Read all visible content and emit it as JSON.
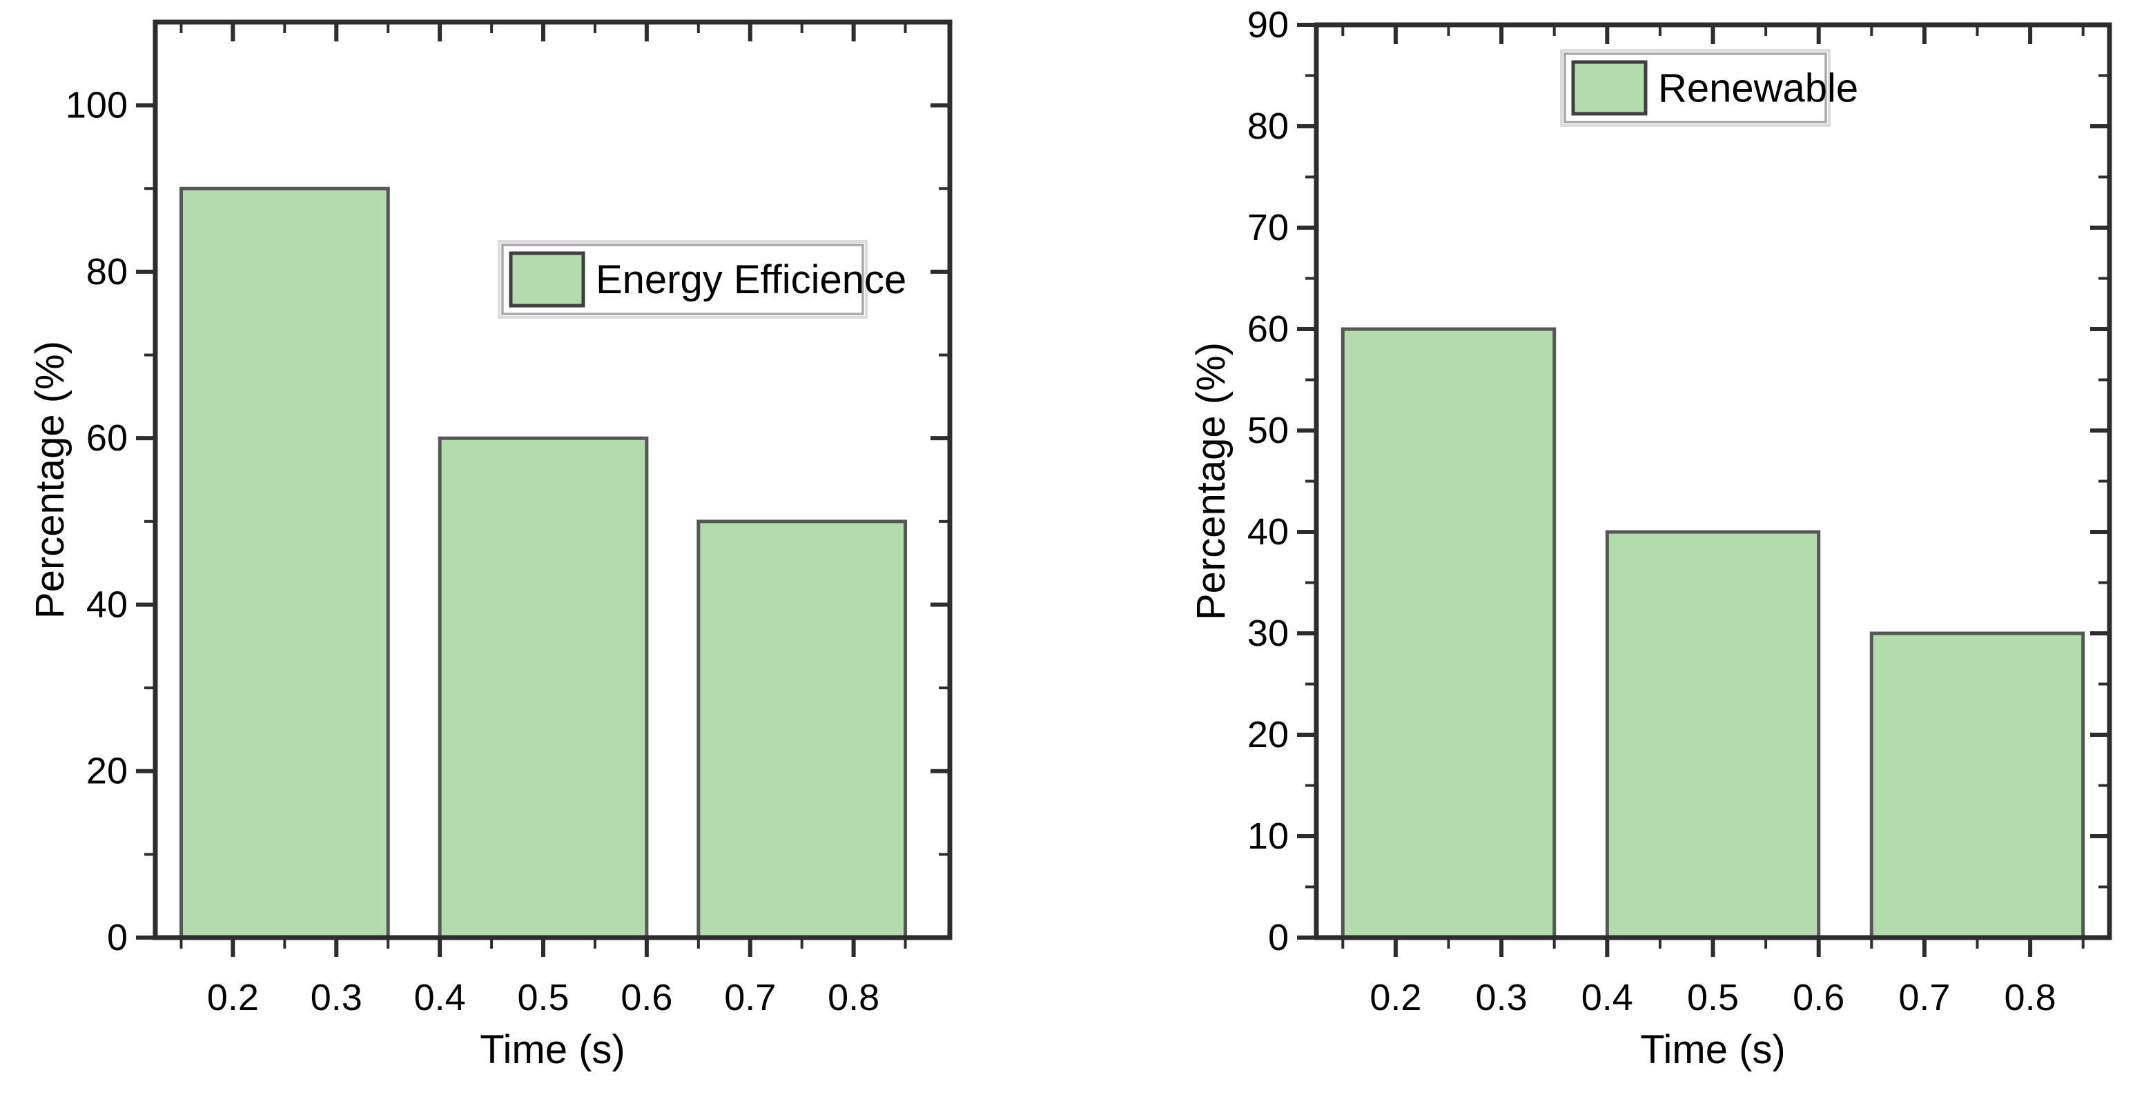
{
  "figure": {
    "background": "#ffffff",
    "description": "Two side-by-side bar charts of percentage versus time"
  },
  "styles": {
    "bar_fill": "#b2dcab",
    "bar_edge": "#565656",
    "axis_color": "#2d2d2d",
    "text_color": "#000000",
    "legend_border": "#a8a8a8",
    "legend_halo": "#dcdcdc",
    "legend_fill": "#ffffff",
    "swatch_border": "#3f3f3f"
  },
  "chart_data": [
    {
      "type": "bar",
      "title": "",
      "legend_label": "Energy Efficience",
      "xlabel": "Time (s)",
      "ylabel": "Percentage (%)",
      "x_centers": [
        0.25,
        0.5,
        0.75
      ],
      "bar_width": 0.2,
      "values": [
        90,
        60,
        50
      ],
      "xlim": [
        0.125,
        0.893
      ],
      "ylim": [
        0,
        110
      ],
      "x_major_ticks": [
        0.2,
        0.3,
        0.4,
        0.5,
        0.6,
        0.7,
        0.8
      ],
      "x_tick_labels": [
        "0.2",
        "0.3",
        "0.4",
        "0.5",
        "0.6",
        "0.7",
        "0.8"
      ],
      "x_minor_ticks": [
        0.15,
        0.25,
        0.35,
        0.45,
        0.55,
        0.65,
        0.75,
        0.85
      ],
      "y_major_step": 20,
      "y_minor_step": 10,
      "y_tick_labels": [
        "0",
        "20",
        "40",
        "60",
        "80",
        "100"
      ],
      "grid": false,
      "legend_position": "inside upper right area",
      "legend_frac": {
        "x": 0.437,
        "y": 0.2434,
        "w": 0.4535,
        "h": 0.0754
      }
    },
    {
      "type": "bar",
      "title": "",
      "legend_label": "Renewable",
      "xlabel": "Time (s)",
      "ylabel": "Percentage (%)",
      "x_centers": [
        0.25,
        0.5,
        0.75
      ],
      "bar_width": 0.2,
      "values": [
        60,
        40,
        30
      ],
      "xlim": [
        0.125,
        0.875
      ],
      "ylim": [
        0,
        90
      ],
      "x_major_ticks": [
        0.2,
        0.3,
        0.4,
        0.5,
        0.6,
        0.7,
        0.8
      ],
      "x_tick_labels": [
        "0.2",
        "0.3",
        "0.4",
        "0.5",
        "0.6",
        "0.7",
        "0.8"
      ],
      "x_minor_ticks": [
        0.15,
        0.25,
        0.35,
        0.45,
        0.55,
        0.65,
        0.75,
        0.85
      ],
      "y_major_step": 10,
      "y_minor_step": 5,
      "y_tick_labels": [
        "0",
        "10",
        "20",
        "30",
        "40",
        "50",
        "60",
        "70",
        "80",
        "90"
      ],
      "grid": false,
      "legend_position": "inside upper center-left area",
      "legend_frac": {
        "x": 0.3133,
        "y": 0.0317,
        "w": 0.329,
        "h": 0.0748
      }
    }
  ]
}
